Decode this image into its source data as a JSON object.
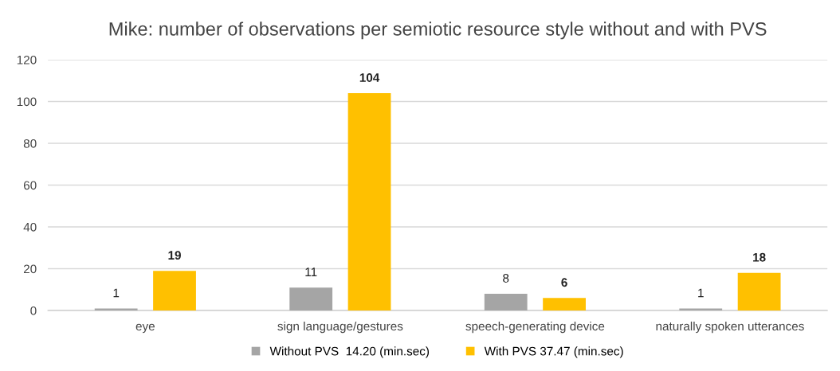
{
  "chart_data": {
    "type": "bar",
    "title": "Mike: number of observations per semiotic resource style without and with PVS",
    "categories": [
      "eye",
      "sign language/gestures",
      "speech-generating device",
      "naturally spoken utterances"
    ],
    "series": [
      {
        "name": "Without PVS  14.20 (min.sec)",
        "color": "#a5a5a5",
        "values": [
          1,
          11,
          8,
          1
        ]
      },
      {
        "name": "With PVS 37.47 (min.sec)",
        "color": "#ffc000",
        "values": [
          19,
          104,
          6,
          18
        ]
      }
    ],
    "ylim": [
      0,
      120
    ],
    "yticks": [
      0,
      20,
      40,
      60,
      80,
      100,
      120
    ],
    "grid": "y",
    "legend": "bottom",
    "data_labels": true
  }
}
